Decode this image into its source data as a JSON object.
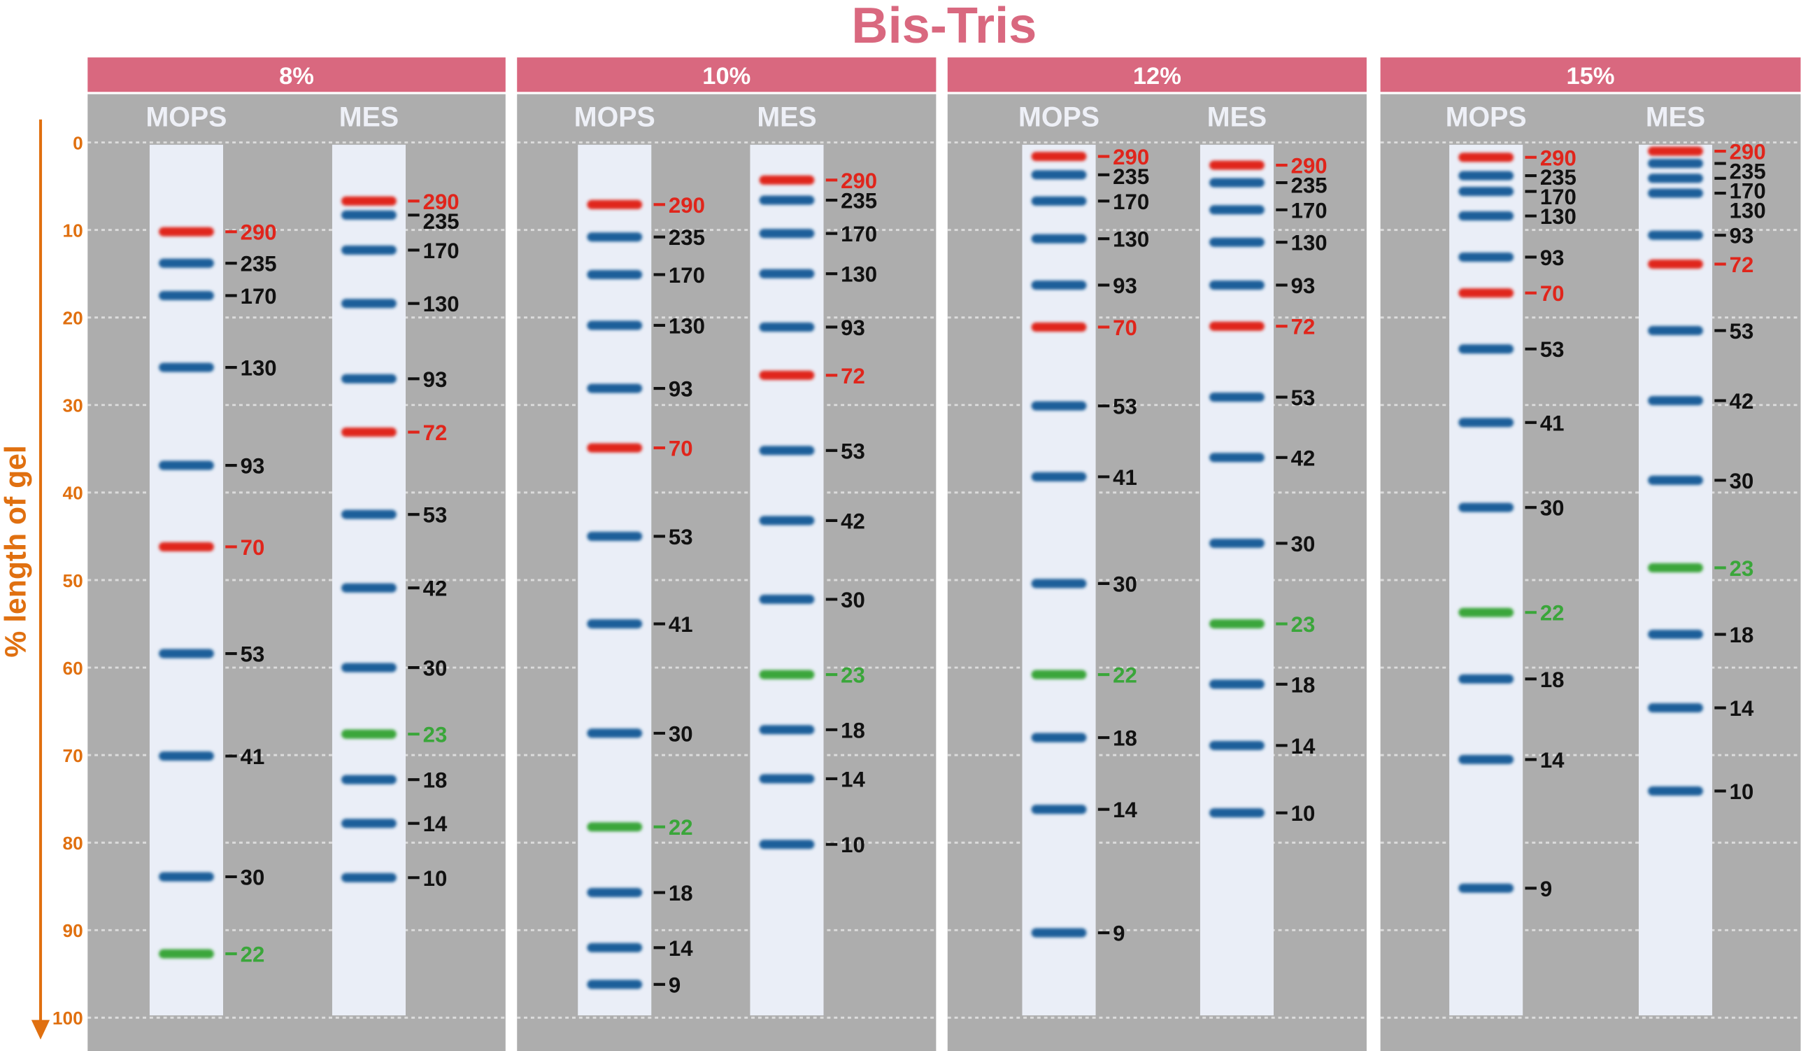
{
  "chart_data": {
    "type": "scatter",
    "title": "Bis-Tris",
    "ylabel": "% length of gel",
    "ylim": [
      0,
      100
    ],
    "yticks": [
      0,
      10,
      20,
      30,
      40,
      50,
      60,
      70,
      80,
      90,
      100
    ],
    "grid": true,
    "colors": {
      "title": "#d9687f",
      "header": "#d9687f",
      "axis": "#e07010",
      "panel": "#adadad",
      "lane": "#eaeef7",
      "blue": "#1c5e9a",
      "red": "#e0251b",
      "green": "#3aa63a",
      "label_dark": "#111111",
      "label_red": "#e0251b",
      "label_green": "#3aa63a"
    },
    "panels": [
      {
        "gel": "8%",
        "lanes": [
          {
            "buffer": "MOPS",
            "bands": [
              {
                "kDa": "290",
                "pos": 10.2,
                "color": "red"
              },
              {
                "kDa": "235",
                "pos": 13.8,
                "color": "blue"
              },
              {
                "kDa": "170",
                "pos": 17.5,
                "color": "blue"
              },
              {
                "kDa": "130",
                "pos": 25.7,
                "color": "blue"
              },
              {
                "kDa": "93",
                "pos": 36.9,
                "color": "blue"
              },
              {
                "kDa": "70",
                "pos": 46.2,
                "color": "red"
              },
              {
                "kDa": "53",
                "pos": 58.4,
                "color": "blue"
              },
              {
                "kDa": "41",
                "pos": 70.1,
                "color": "blue"
              },
              {
                "kDa": "30",
                "pos": 83.9,
                "color": "blue"
              },
              {
                "kDa": "22",
                "pos": 92.7,
                "color": "green"
              }
            ]
          },
          {
            "buffer": "MES",
            "bands": [
              {
                "kDa": "290",
                "pos": 6.7,
                "color": "red"
              },
              {
                "kDa": "235",
                "pos": 8.3,
                "color": "blue"
              },
              {
                "kDa": "170",
                "pos": 12.3,
                "color": "blue"
              },
              {
                "kDa": "130",
                "pos": 18.4,
                "color": "blue"
              },
              {
                "kDa": "93",
                "pos": 27.0,
                "color": "blue"
              },
              {
                "kDa": "72",
                "pos": 33.1,
                "color": "red"
              },
              {
                "kDa": "53",
                "pos": 42.5,
                "color": "blue"
              },
              {
                "kDa": "42",
                "pos": 50.9,
                "color": "blue"
              },
              {
                "kDa": "30",
                "pos": 60.0,
                "color": "blue"
              },
              {
                "kDa": "23",
                "pos": 67.6,
                "color": "green"
              },
              {
                "kDa": "18",
                "pos": 72.8,
                "color": "blue"
              },
              {
                "kDa": "14",
                "pos": 77.8,
                "color": "blue"
              },
              {
                "kDa": "10",
                "pos": 84.0,
                "color": "blue"
              }
            ]
          }
        ]
      },
      {
        "gel": "10%",
        "lanes": [
          {
            "buffer": "MOPS",
            "bands": [
              {
                "kDa": "290",
                "pos": 7.1,
                "color": "red"
              },
              {
                "kDa": "235",
                "pos": 10.8,
                "color": "blue"
              },
              {
                "kDa": "170",
                "pos": 15.1,
                "color": "blue"
              },
              {
                "kDa": "130",
                "pos": 20.9,
                "color": "blue"
              },
              {
                "kDa": "93",
                "pos": 28.1,
                "color": "blue"
              },
              {
                "kDa": "70",
                "pos": 34.9,
                "color": "red"
              },
              {
                "kDa": "53",
                "pos": 45.0,
                "color": "blue"
              },
              {
                "kDa": "41",
                "pos": 55.0,
                "color": "blue"
              },
              {
                "kDa": "30",
                "pos": 67.5,
                "color": "blue"
              },
              {
                "kDa": "22",
                "pos": 78.2,
                "color": "green"
              },
              {
                "kDa": "18",
                "pos": 85.7,
                "color": "blue"
              },
              {
                "kDa": "14",
                "pos": 92.0,
                "color": "blue"
              },
              {
                "kDa": "9",
                "pos": 96.2,
                "color": "blue"
              }
            ]
          },
          {
            "buffer": "MES",
            "bands": [
              {
                "kDa": "290",
                "pos": 4.3,
                "color": "red"
              },
              {
                "kDa": "235",
                "pos": 6.6,
                "color": "blue"
              },
              {
                "kDa": "170",
                "pos": 10.4,
                "color": "blue"
              },
              {
                "kDa": "130",
                "pos": 15.0,
                "color": "blue"
              },
              {
                "kDa": "93",
                "pos": 21.1,
                "color": "blue"
              },
              {
                "kDa": "72",
                "pos": 26.6,
                "color": "red"
              },
              {
                "kDa": "53",
                "pos": 35.2,
                "color": "blue"
              },
              {
                "kDa": "42",
                "pos": 43.2,
                "color": "blue"
              },
              {
                "kDa": "30",
                "pos": 52.2,
                "color": "blue"
              },
              {
                "kDa": "23",
                "pos": 60.8,
                "color": "green"
              },
              {
                "kDa": "18",
                "pos": 67.1,
                "color": "blue"
              },
              {
                "kDa": "14",
                "pos": 72.7,
                "color": "blue"
              },
              {
                "kDa": "10",
                "pos": 80.2,
                "color": "blue"
              }
            ]
          }
        ]
      },
      {
        "gel": "12%",
        "lanes": [
          {
            "buffer": "MOPS",
            "bands": [
              {
                "kDa": "290",
                "pos": 1.6,
                "color": "red"
              },
              {
                "kDa": "235",
                "pos": 3.7,
                "color": "blue"
              },
              {
                "kDa": "170",
                "pos": 6.7,
                "color": "blue"
              },
              {
                "kDa": "130",
                "pos": 11.0,
                "color": "blue"
              },
              {
                "kDa": "93",
                "pos": 16.3,
                "color": "blue"
              },
              {
                "kDa": "70",
                "pos": 21.1,
                "color": "red"
              },
              {
                "kDa": "53",
                "pos": 30.1,
                "color": "blue"
              },
              {
                "kDa": "41",
                "pos": 38.2,
                "color": "blue"
              },
              {
                "kDa": "30",
                "pos": 50.4,
                "color": "blue"
              },
              {
                "kDa": "22",
                "pos": 60.8,
                "color": "green"
              },
              {
                "kDa": "18",
                "pos": 68.0,
                "color": "blue"
              },
              {
                "kDa": "14",
                "pos": 76.2,
                "color": "blue"
              },
              {
                "kDa": "9",
                "pos": 90.3,
                "color": "blue"
              }
            ]
          },
          {
            "buffer": "MES",
            "bands": [
              {
                "kDa": "290",
                "pos": 2.6,
                "color": "red"
              },
              {
                "kDa": "235",
                "pos": 4.6,
                "color": "blue"
              },
              {
                "kDa": "170",
                "pos": 7.7,
                "color": "blue"
              },
              {
                "kDa": "130",
                "pos": 11.4,
                "color": "blue"
              },
              {
                "kDa": "93",
                "pos": 16.3,
                "color": "blue"
              },
              {
                "kDa": "72",
                "pos": 21.0,
                "color": "red"
              },
              {
                "kDa": "53",
                "pos": 29.1,
                "color": "blue"
              },
              {
                "kDa": "42",
                "pos": 36.0,
                "color": "blue"
              },
              {
                "kDa": "30",
                "pos": 45.8,
                "color": "blue"
              },
              {
                "kDa": "23",
                "pos": 55.0,
                "color": "green"
              },
              {
                "kDa": "18",
                "pos": 61.9,
                "color": "blue"
              },
              {
                "kDa": "14",
                "pos": 68.9,
                "color": "blue"
              },
              {
                "kDa": "10",
                "pos": 76.6,
                "color": "blue"
              }
            ]
          }
        ]
      },
      {
        "gel": "15%",
        "lanes": [
          {
            "buffer": "MOPS",
            "bands": [
              {
                "kDa": "290",
                "pos": 1.7,
                "color": "red"
              },
              {
                "kDa": "235",
                "pos": 3.8,
                "color": "blue"
              },
              {
                "kDa": "170",
                "pos": 5.6,
                "color": "blue"
              },
              {
                "kDa": "130",
                "pos": 8.4,
                "color": "blue"
              },
              {
                "kDa": "93",
                "pos": 13.1,
                "color": "blue"
              },
              {
                "kDa": "70",
                "pos": 17.2,
                "color": "red"
              },
              {
                "kDa": "53",
                "pos": 23.6,
                "color": "blue"
              },
              {
                "kDa": "41",
                "pos": 32.0,
                "color": "blue"
              },
              {
                "kDa": "30",
                "pos": 41.7,
                "color": "blue"
              },
              {
                "kDa": "22",
                "pos": 53.7,
                "color": "green"
              },
              {
                "kDa": "18",
                "pos": 61.3,
                "color": "blue"
              },
              {
                "kDa": "14",
                "pos": 70.5,
                "color": "blue"
              },
              {
                "kDa": "9",
                "pos": 85.2,
                "color": "blue"
              }
            ]
          },
          {
            "buffer": "MES",
            "bands": [
              {
                "kDa": "290",
                "pos": 1.0,
                "color": "red"
              },
              {
                "kDa": "235",
                "pos": 2.4,
                "color": "blue"
              },
              {
                "kDa": "170",
                "pos": 4.1,
                "color": "blue"
              },
              {
                "kDa": "130",
                "pos": 5.8,
                "color": "blue"
              },
              {
                "kDa": "93",
                "pos": 10.6,
                "color": "blue"
              },
              {
                "kDa": "72",
                "pos": 13.9,
                "color": "red"
              },
              {
                "kDa": "53",
                "pos": 21.5,
                "color": "blue"
              },
              {
                "kDa": "42",
                "pos": 29.5,
                "color": "blue"
              },
              {
                "kDa": "30",
                "pos": 38.6,
                "color": "blue"
              },
              {
                "kDa": "23",
                "pos": 48.6,
                "color": "green"
              },
              {
                "kDa": "18",
                "pos": 56.2,
                "color": "blue"
              },
              {
                "kDa": "14",
                "pos": 64.6,
                "color": "blue"
              },
              {
                "kDa": "10",
                "pos": 74.1,
                "color": "blue"
              }
            ]
          }
        ]
      }
    ]
  }
}
